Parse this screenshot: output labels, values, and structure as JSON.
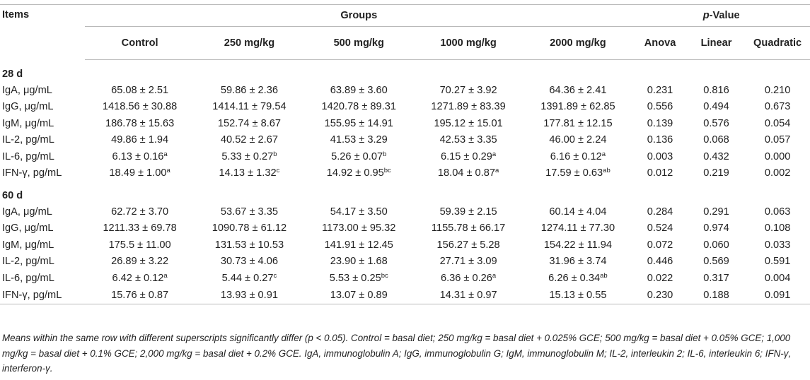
{
  "header": {
    "items": "Items",
    "groups": "Groups",
    "pvalue_italic": "p",
    "pvalue_rest": "-Value",
    "group_cols": [
      "Control",
      "250 mg/kg",
      "500 mg/kg",
      "1000 mg/kg",
      "2000 mg/kg"
    ],
    "p_cols": [
      "Anova",
      "Linear",
      "Quadratic"
    ]
  },
  "sections": [
    {
      "label": "28 d",
      "rows": [
        {
          "item": "IgA, μg/mL",
          "groups": [
            {
              "v": "65.08 ± 2.51",
              "s": ""
            },
            {
              "v": "59.86 ± 2.36",
              "s": ""
            },
            {
              "v": "63.89 ± 3.60",
              "s": ""
            },
            {
              "v": "70.27 ± 3.92",
              "s": ""
            },
            {
              "v": "64.36 ± 2.41",
              "s": ""
            }
          ],
          "p": [
            "0.231",
            "0.816",
            "0.210"
          ]
        },
        {
          "item": "IgG, μg/mL",
          "groups": [
            {
              "v": "1418.56 ± 30.88",
              "s": ""
            },
            {
              "v": "1414.11 ± 79.54",
              "s": ""
            },
            {
              "v": "1420.78 ± 89.31",
              "s": ""
            },
            {
              "v": "1271.89 ± 83.39",
              "s": ""
            },
            {
              "v": "1391.89 ± 62.85",
              "s": ""
            }
          ],
          "p": [
            "0.556",
            "0.494",
            "0.673"
          ]
        },
        {
          "item": "IgM, μg/mL",
          "groups": [
            {
              "v": "186.78 ± 15.63",
              "s": ""
            },
            {
              "v": "152.74 ± 8.67",
              "s": ""
            },
            {
              "v": "155.95 ± 14.91",
              "s": ""
            },
            {
              "v": "195.12 ± 15.01",
              "s": ""
            },
            {
              "v": "177.81 ± 12.15",
              "s": ""
            }
          ],
          "p": [
            "0.139",
            "0.576",
            "0.054"
          ]
        },
        {
          "item": "IL-2, pg/mL",
          "groups": [
            {
              "v": "49.86 ± 1.94",
              "s": ""
            },
            {
              "v": "40.52 ± 2.67",
              "s": ""
            },
            {
              "v": "41.53 ± 3.29",
              "s": ""
            },
            {
              "v": "42.53 ± 3.35",
              "s": ""
            },
            {
              "v": "46.00 ± 2.24",
              "s": ""
            }
          ],
          "p": [
            "0.136",
            "0.068",
            "0.057"
          ]
        },
        {
          "item": "IL-6, pg/mL",
          "groups": [
            {
              "v": "6.13 ± 0.16",
              "s": "a"
            },
            {
              "v": "5.33 ± 0.27",
              "s": "b"
            },
            {
              "v": "5.26 ± 0.07",
              "s": "b"
            },
            {
              "v": "6.15 ± 0.29",
              "s": "a"
            },
            {
              "v": "6.16 ± 0.12",
              "s": "a"
            }
          ],
          "p": [
            "0.003",
            "0.432",
            "0.000"
          ]
        },
        {
          "item": "IFN-γ, pg/mL",
          "groups": [
            {
              "v": "18.49 ± 1.00",
              "s": "a"
            },
            {
              "v": "14.13 ± 1.32",
              "s": "c"
            },
            {
              "v": "14.92 ± 0.95",
              "s": "bc"
            },
            {
              "v": "18.04 ± 0.87",
              "s": "a"
            },
            {
              "v": "17.59 ± 0.63",
              "s": "ab"
            }
          ],
          "p": [
            "0.012",
            "0.219",
            "0.002"
          ]
        }
      ]
    },
    {
      "label": "60 d",
      "rows": [
        {
          "item": "IgA, μg/mL",
          "groups": [
            {
              "v": "62.72 ± 3.70",
              "s": ""
            },
            {
              "v": "53.67 ± 3.35",
              "s": ""
            },
            {
              "v": "54.17 ± 3.50",
              "s": ""
            },
            {
              "v": "59.39 ± 2.15",
              "s": ""
            },
            {
              "v": "60.14 ± 4.04",
              "s": ""
            }
          ],
          "p": [
            "0.284",
            "0.291",
            "0.063"
          ]
        },
        {
          "item": "IgG, μg/mL",
          "groups": [
            {
              "v": "1211.33 ± 69.78",
              "s": ""
            },
            {
              "v": "1090.78 ± 61.12",
              "s": ""
            },
            {
              "v": "1173.00 ± 95.32",
              "s": ""
            },
            {
              "v": "1155.78 ± 66.17",
              "s": ""
            },
            {
              "v": "1274.11 ± 77.30",
              "s": ""
            }
          ],
          "p": [
            "0.524",
            "0.974",
            "0.108"
          ]
        },
        {
          "item": "IgM, μg/mL",
          "groups": [
            {
              "v": "175.5 ± 11.00",
              "s": ""
            },
            {
              "v": "131.53 ± 10.53",
              "s": ""
            },
            {
              "v": "141.91 ± 12.45",
              "s": ""
            },
            {
              "v": "156.27 ± 5.28",
              "s": ""
            },
            {
              "v": "154.22 ± 11.94",
              "s": ""
            }
          ],
          "p": [
            "0.072",
            "0.060",
            "0.033"
          ]
        },
        {
          "item": "IL-2, pg/mL",
          "groups": [
            {
              "v": "26.89 ± 3.22",
              "s": ""
            },
            {
              "v": "30.73 ± 4.06",
              "s": ""
            },
            {
              "v": "23.90 ± 1.68",
              "s": ""
            },
            {
              "v": "27.71 ± 3.09",
              "s": ""
            },
            {
              "v": "31.96 ± 3.74",
              "s": ""
            }
          ],
          "p": [
            "0.446",
            "0.569",
            "0.591"
          ]
        },
        {
          "item": "IL-6, pg/mL",
          "groups": [
            {
              "v": "6.42 ± 0.12",
              "s": "a"
            },
            {
              "v": "5.44 ± 0.27",
              "s": "c"
            },
            {
              "v": "5.53 ± 0.25",
              "s": "bc"
            },
            {
              "v": "6.36 ± 0.26",
              "s": "a"
            },
            {
              "v": "6.26 ± 0.34",
              "s": "ab"
            }
          ],
          "p": [
            "0.022",
            "0.317",
            "0.004"
          ]
        },
        {
          "item": "IFN-γ, pg/mL",
          "groups": [
            {
              "v": "15.76 ± 0.87",
              "s": ""
            },
            {
              "v": "13.93 ± 0.91",
              "s": ""
            },
            {
              "v": "13.07 ± 0.89",
              "s": ""
            },
            {
              "v": "14.31 ± 0.97",
              "s": ""
            },
            {
              "v": "15.13 ± 0.55",
              "s": ""
            }
          ],
          "p": [
            "0.230",
            "0.188",
            "0.091"
          ]
        }
      ]
    }
  ],
  "footnote": "Means within the same row with different superscripts significantly differ (p < 0.05). Control = basal diet; 250 mg/kg = basal diet + 0.025% GCE; 500 mg/kg = basal diet + 0.05% GCE; 1,000 mg/kg = basal diet + 0.1% GCE; 2,000 mg/kg = basal diet + 0.2% GCE. IgA, immunoglobulin A; IgG, immunoglobulin G; IgM, immunoglobulin M; IL-2, interleukin 2; IL-6, interleukin 6; IFN-γ, interferon-γ."
}
